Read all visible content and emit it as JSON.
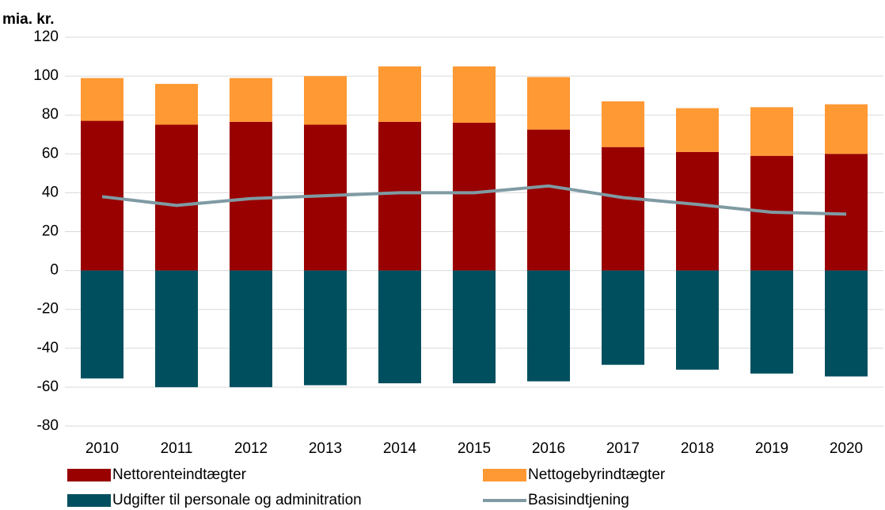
{
  "chart_data": {
    "type": "bar",
    "y_label": "mia. kr.",
    "categories": [
      "2010",
      "2011",
      "2012",
      "2013",
      "2014",
      "2015",
      "2016",
      "2017",
      "2018",
      "2019",
      "2020"
    ],
    "series": [
      {
        "name": "Nettorenteindtægter",
        "type": "bar",
        "color": "#990000",
        "values": [
          77,
          75,
          76.5,
          75,
          76.5,
          76,
          72.5,
          63.5,
          61,
          59,
          60
        ]
      },
      {
        "name": "Nettogebyrindtægter",
        "type": "bar",
        "color": "#ff9933",
        "values": [
          22,
          21,
          22.5,
          25,
          28.5,
          29,
          27,
          23.5,
          22.5,
          25,
          25.5
        ]
      },
      {
        "name": "Udgifter til personale og adminitration",
        "type": "bar",
        "color": "#004f5f",
        "values": [
          -55.5,
          -60,
          -60,
          -59,
          -58,
          -58,
          -57,
          -48.5,
          -51,
          -53,
          -54.5
        ]
      },
      {
        "name": "Basisindtjening",
        "type": "line",
        "color": "#7f9aa3",
        "values": [
          38,
          33.5,
          37,
          38.5,
          40,
          40,
          43.5,
          37.5,
          34,
          30,
          29
        ]
      }
    ],
    "ylim": [
      -80,
      120
    ],
    "yticks": [
      -80,
      -60,
      -40,
      -20,
      0,
      20,
      40,
      60,
      80,
      100,
      120
    ],
    "grid": true
  }
}
